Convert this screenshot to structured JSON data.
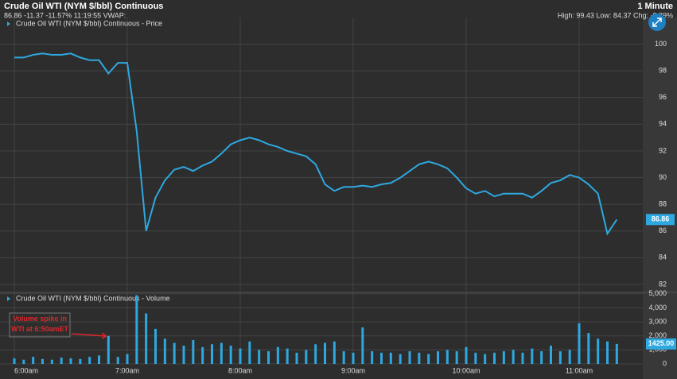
{
  "header": {
    "title": "Crude Oil WTI (NYM $/bbl) Continuous",
    "interval": "1 Minute",
    "quote": "86.86 -11.37 -11.57% 11:19:55 VWAP:",
    "stats": "High: 99.43 Low: 84.37 Chg: -8.89%"
  },
  "chart_data": [
    {
      "type": "line",
      "title": "Crude Oil WTI (NYM $/bbl) Continuous - Price",
      "color": "#2ea8e0",
      "x": [
        "6:00am",
        "6:05am",
        "6:10am",
        "6:15am",
        "6:20am",
        "6:25am",
        "6:30am",
        "6:35am",
        "6:40am",
        "6:45am",
        "6:50am",
        "6:55am",
        "7:00am",
        "7:05am",
        "7:10am",
        "7:15am",
        "7:20am",
        "7:25am",
        "7:30am",
        "7:35am",
        "7:40am",
        "7:45am",
        "7:50am",
        "7:55am",
        "8:00am",
        "8:05am",
        "8:10am",
        "8:15am",
        "8:20am",
        "8:25am",
        "8:30am",
        "8:35am",
        "8:40am",
        "8:45am",
        "8:50am",
        "8:55am",
        "9:00am",
        "9:05am",
        "9:10am",
        "9:15am",
        "9:20am",
        "9:25am",
        "9:30am",
        "9:35am",
        "9:40am",
        "9:45am",
        "9:50am",
        "9:55am",
        "10:00am",
        "10:05am",
        "10:10am",
        "10:15am",
        "10:20am",
        "10:25am",
        "10:30am",
        "10:35am",
        "10:40am",
        "10:45am",
        "10:50am",
        "10:55am",
        "11:00am",
        "11:05am",
        "11:10am",
        "11:15am",
        "11:20am"
      ],
      "values": [
        99.0,
        99.0,
        99.2,
        99.3,
        99.2,
        99.2,
        99.3,
        99.0,
        98.8,
        98.8,
        97.8,
        98.6,
        98.6,
        93.5,
        86.0,
        88.5,
        89.8,
        90.6,
        90.8,
        90.5,
        90.9,
        91.2,
        91.8,
        92.5,
        92.8,
        93.0,
        92.8,
        92.5,
        92.3,
        92.0,
        91.8,
        91.6,
        91.0,
        89.5,
        89.0,
        89.3,
        89.3,
        89.4,
        89.3,
        89.5,
        89.6,
        90.0,
        90.5,
        91.0,
        91.2,
        91.0,
        90.7,
        90.0,
        89.2,
        88.8,
        89.0,
        88.6,
        88.8,
        88.8,
        88.8,
        88.5,
        89.0,
        89.6,
        89.8,
        90.2,
        90.0,
        89.5,
        88.8,
        85.8,
        86.86
      ],
      "ylim": [
        81.4,
        102
      ],
      "yticks": [
        82,
        84,
        86,
        88,
        90,
        92,
        94,
        96,
        98,
        100
      ]
    },
    {
      "type": "bar",
      "title": "Crude Oil WTI (NYM $/bbl) Continuous - Volume",
      "color": "#2ea8e0",
      "x": [
        "6:00am",
        "6:05am",
        "6:10am",
        "6:15am",
        "6:20am",
        "6:25am",
        "6:30am",
        "6:35am",
        "6:40am",
        "6:45am",
        "6:50am",
        "6:55am",
        "7:00am",
        "7:05am",
        "7:10am",
        "7:15am",
        "7:20am",
        "7:25am",
        "7:30am",
        "7:35am",
        "7:40am",
        "7:45am",
        "7:50am",
        "7:55am",
        "8:00am",
        "8:05am",
        "8:10am",
        "8:15am",
        "8:20am",
        "8:25am",
        "8:30am",
        "8:35am",
        "8:40am",
        "8:45am",
        "8:50am",
        "8:55am",
        "9:00am",
        "9:05am",
        "9:10am",
        "9:15am",
        "9:20am",
        "9:25am",
        "9:30am",
        "9:35am",
        "9:40am",
        "9:45am",
        "9:50am",
        "9:55am",
        "10:00am",
        "10:05am",
        "10:10am",
        "10:15am",
        "10:20am",
        "10:25am",
        "10:30am",
        "10:35am",
        "10:40am",
        "10:45am",
        "10:50am",
        "10:55am",
        "11:00am",
        "11:05am",
        "11:10am",
        "11:15am",
        "11:20am"
      ],
      "values": [
        400,
        300,
        500,
        350,
        300,
        450,
        400,
        350,
        500,
        600,
        2000,
        500,
        700,
        4900,
        3600,
        2500,
        1800,
        1500,
        1300,
        1700,
        1200,
        1400,
        1500,
        1300,
        1100,
        1600,
        1000,
        900,
        1200,
        1100,
        800,
        1000,
        1400,
        1500,
        1600,
        900,
        800,
        2600,
        900,
        800,
        800,
        700,
        900,
        800,
        700,
        900,
        1000,
        900,
        1200,
        800,
        700,
        800,
        900,
        1000,
        800,
        1100,
        900,
        1300,
        900,
        1000,
        2900,
        2200,
        1800,
        1600,
        1425
      ],
      "last_label": "1425.00",
      "ylim": [
        0,
        5100
      ],
      "yticks": [
        0,
        {
          "value": 1000,
          "label": "1,000"
        },
        {
          "value": 2000,
          "label": "2,000"
        },
        {
          "value": 3000,
          "label": "3,000"
        },
        {
          "value": 4000,
          "label": "4,000"
        },
        {
          "value": 5000,
          "label": "5,000"
        }
      ],
      "xticks": [
        "6:00am",
        "7:00am",
        "8:00am",
        "9:00am",
        "10:00am",
        "11:00am"
      ],
      "annotation": "Volume spike in WTI at 6:50amET"
    }
  ]
}
